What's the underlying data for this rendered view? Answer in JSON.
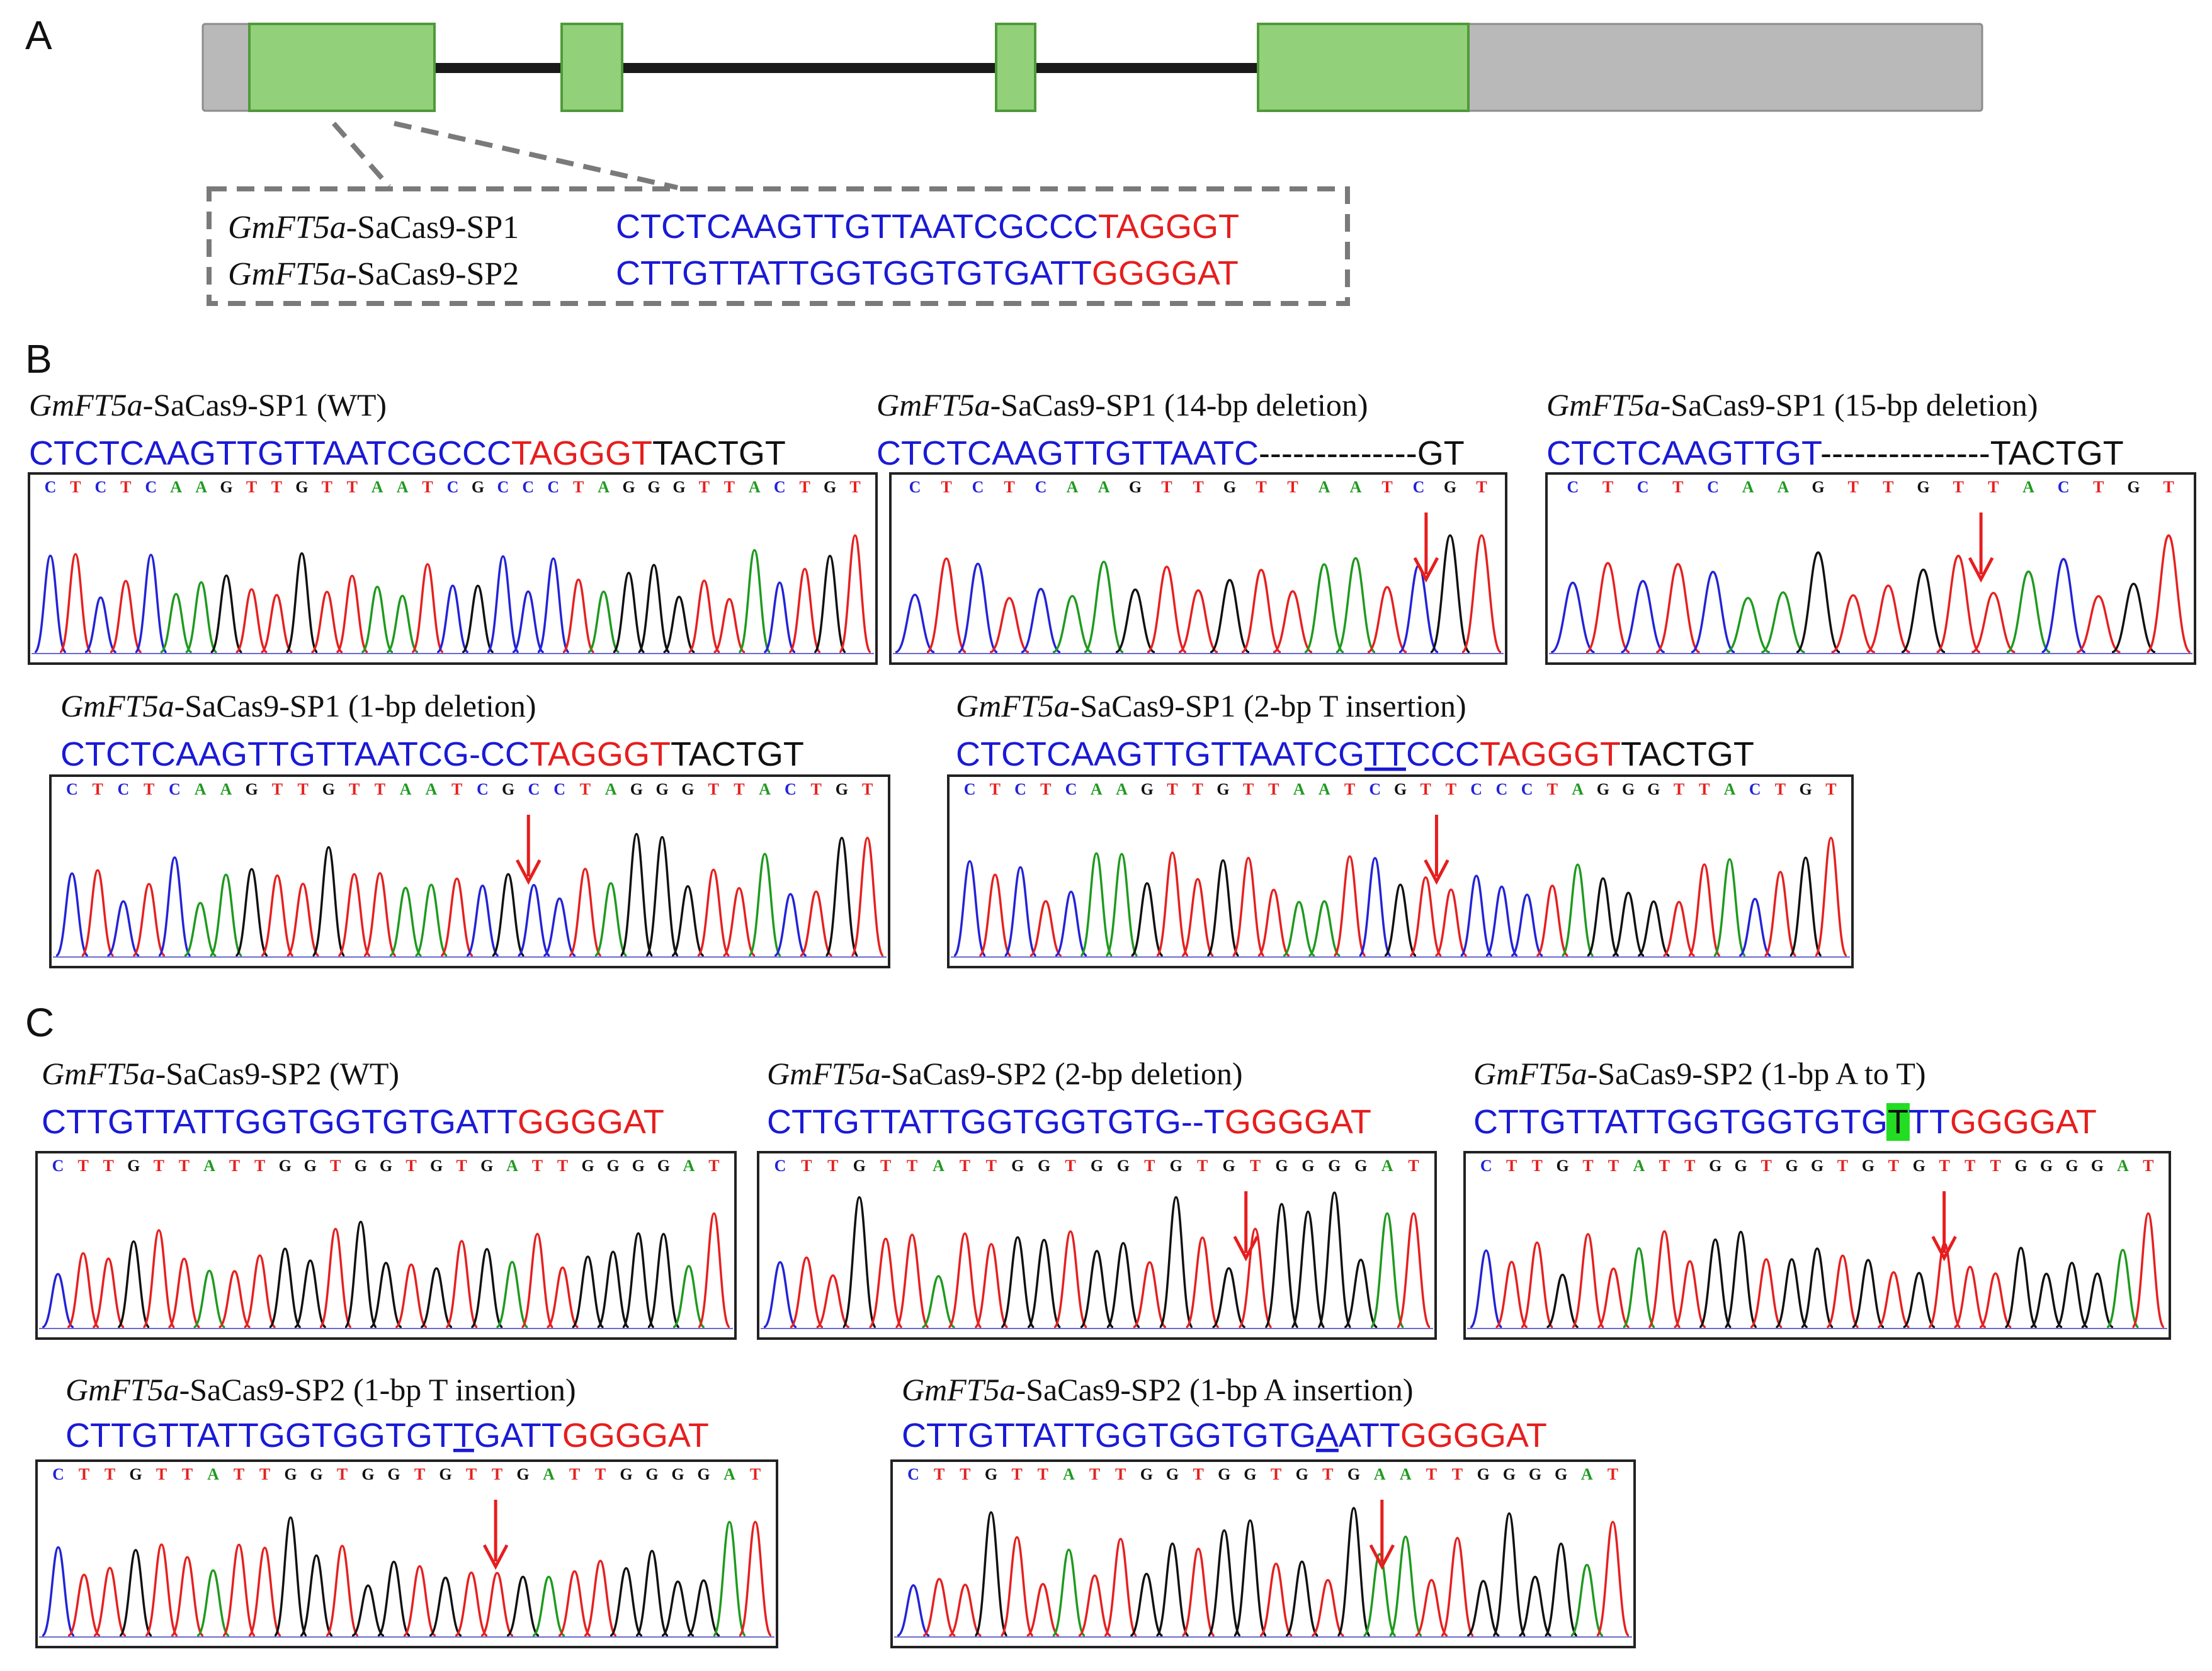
{
  "panels": [
    {
      "id": "A",
      "label": "A"
    },
    {
      "id": "B",
      "label": "B"
    },
    {
      "id": "C",
      "label": "C"
    }
  ],
  "colors": {
    "exon": "#93d07a",
    "exon_edge": "#4f9a3a",
    "utr": "#b9b9b9",
    "intron": "#1a1a1a",
    "spacer": "#1a1ad6",
    "pam": "#e61e1e",
    "black": "#111111",
    "arrow": "#e61e1e",
    "base_A": "#1f9a1f",
    "base_C": "#2323d8",
    "base_G": "#111111",
    "base_T": "#e62020",
    "highlight": "#22dd22"
  },
  "gene_model": {
    "targets": [
      {
        "name_italic": "GmFT5a",
        "name_rest": "-SaCas9-SP1",
        "spacer": "CTCTCAAGTTGTTAATCGCCC",
        "pam": "TAGGGT"
      },
      {
        "name_italic": "GmFT5a",
        "name_rest": "-SaCas9-SP2",
        "spacer": "CTTGTTATTGGTGGTGTGATT",
        "pam": "GGGGAT"
      }
    ]
  },
  "traces": [
    {
      "id": "B1",
      "italic": "GmFT5a",
      "title": "-SaCas9-SP1 (WT)",
      "seq": [
        {
          "t": "CTCTCAAGTTGTTAATCGCCC",
          "c": "b"
        },
        {
          "t": "TAGGGT",
          "c": "r"
        },
        {
          "t": "TACTGT",
          "c": "k"
        }
      ],
      "bases": "CTCTCAAGTTGTTAATCGCCCTAGGGTTACTGT",
      "arrow": null
    },
    {
      "id": "B2",
      "italic": "GmFT5a",
      "title": "-SaCas9-SP1 (14-bp deletion)",
      "seq": [
        {
          "t": "CTCTCAAGTTGTTAATC",
          "c": "b"
        },
        {
          "t": "--------------GT",
          "c": "k"
        }
      ],
      "bases": "CTCTCAAGTTGTTAATCGT",
      "arrow": 0.87
    },
    {
      "id": "B3",
      "italic": "GmFT5a",
      "title": "-SaCas9-SP1 (15-bp deletion)",
      "seq": [
        {
          "t": "CTCTCAAGTTGT",
          "c": "b"
        },
        {
          "t": "---------------TACTGT",
          "c": "k"
        }
      ],
      "bases": "CTCTCAAGTTGTTACTGT",
      "arrow": 0.67
    },
    {
      "id": "B4",
      "italic": "GmFT5a",
      "title": "-SaCas9-SP1 (1-bp deletion)",
      "seq": [
        {
          "t": "CTCTCAAGTTGTTAATCG-CC",
          "c": "b"
        },
        {
          "t": "TAGGGT",
          "c": "r"
        },
        {
          "t": "TACTGT",
          "c": "k"
        }
      ],
      "bases": "CTCTCAAGTTGTTAATCGCCTAGGGTTACTGT",
      "arrow": 0.57
    },
    {
      "id": "B5",
      "italic": "GmFT5a",
      "title": "-SaCas9-SP1 (2-bp T insertion)",
      "seq": [
        {
          "t": "CTCTCAAGTTGTTAATCG",
          "c": "b"
        },
        {
          "t": "TT",
          "c": "b",
          "u": true
        },
        {
          "t": "CCC",
          "c": "b"
        },
        {
          "t": "TAGGGT",
          "c": "r"
        },
        {
          "t": "TACTGT",
          "c": "k"
        }
      ],
      "bases": "CTCTCAAGTTGTTAATCGTTCCCTAGGGTTACTGT",
      "arrow": 0.54
    },
    {
      "id": "C1",
      "italic": "GmFT5a",
      "title": "-SaCas9-SP2 (WT)",
      "seq": [
        {
          "t": "CTTGTTATTGGTGGTGTGATT",
          "c": "b"
        },
        {
          "t": "GGGGAT",
          "c": "r"
        }
      ],
      "bases": "CTTGTTATTGGTGGTGTGATTGGGGAT",
      "arrow": null
    },
    {
      "id": "C2",
      "italic": "GmFT5a",
      "title": "-SaCas9-SP2 (2-bp deletion)",
      "seq": [
        {
          "t": "CTTGTTATTGGTGGTGTG--T",
          "c": "b"
        },
        {
          "t": "GGGGAT",
          "c": "r"
        }
      ],
      "bases": "CTTGTTATTGGTGGTGTGTGGGGAT",
      "arrow": 0.72
    },
    {
      "id": "C3",
      "italic": "GmFT5a",
      "title": "-SaCas9-SP2 (1-bp A to T)",
      "seq": [
        {
          "t": "CTTGTTATTGGTGGTGTG",
          "c": "b"
        },
        {
          "t": "T",
          "c": "k",
          "hl": true
        },
        {
          "t": "TT",
          "c": "b"
        },
        {
          "t": "GGGGAT",
          "c": "r"
        }
      ],
      "bases": "CTTGTTATTGGTGGTGTGTTTGGGGAT",
      "arrow": 0.68
    },
    {
      "id": "C4",
      "italic": "GmFT5a",
      "title": "-SaCas9-SP2 (1-bp T insertion)",
      "seq": [
        {
          "t": "CTTGTTATTGGTGGTGT",
          "c": "b"
        },
        {
          "t": "T",
          "c": "b",
          "u": true
        },
        {
          "t": "GATT",
          "c": "b"
        },
        {
          "t": "GGGGAT",
          "c": "r"
        }
      ],
      "bases": "CTTGTTATTGGTGGTGTTGATTGGGGAT",
      "arrow": 0.62
    },
    {
      "id": "C5",
      "italic": "GmFT5a",
      "title": "-SaCas9-SP2 (1-bp A insertion)",
      "seq": [
        {
          "t": "CTTGTTATTGGTGGTGTG",
          "c": "b"
        },
        {
          "t": "A",
          "c": "b",
          "u": true
        },
        {
          "t": "ATT",
          "c": "b"
        },
        {
          "t": "GGGGAT",
          "c": "r"
        }
      ],
      "bases": "CTTGTTATTGGTGGTGTGAATTGGGGAT",
      "arrow": 0.66
    }
  ]
}
